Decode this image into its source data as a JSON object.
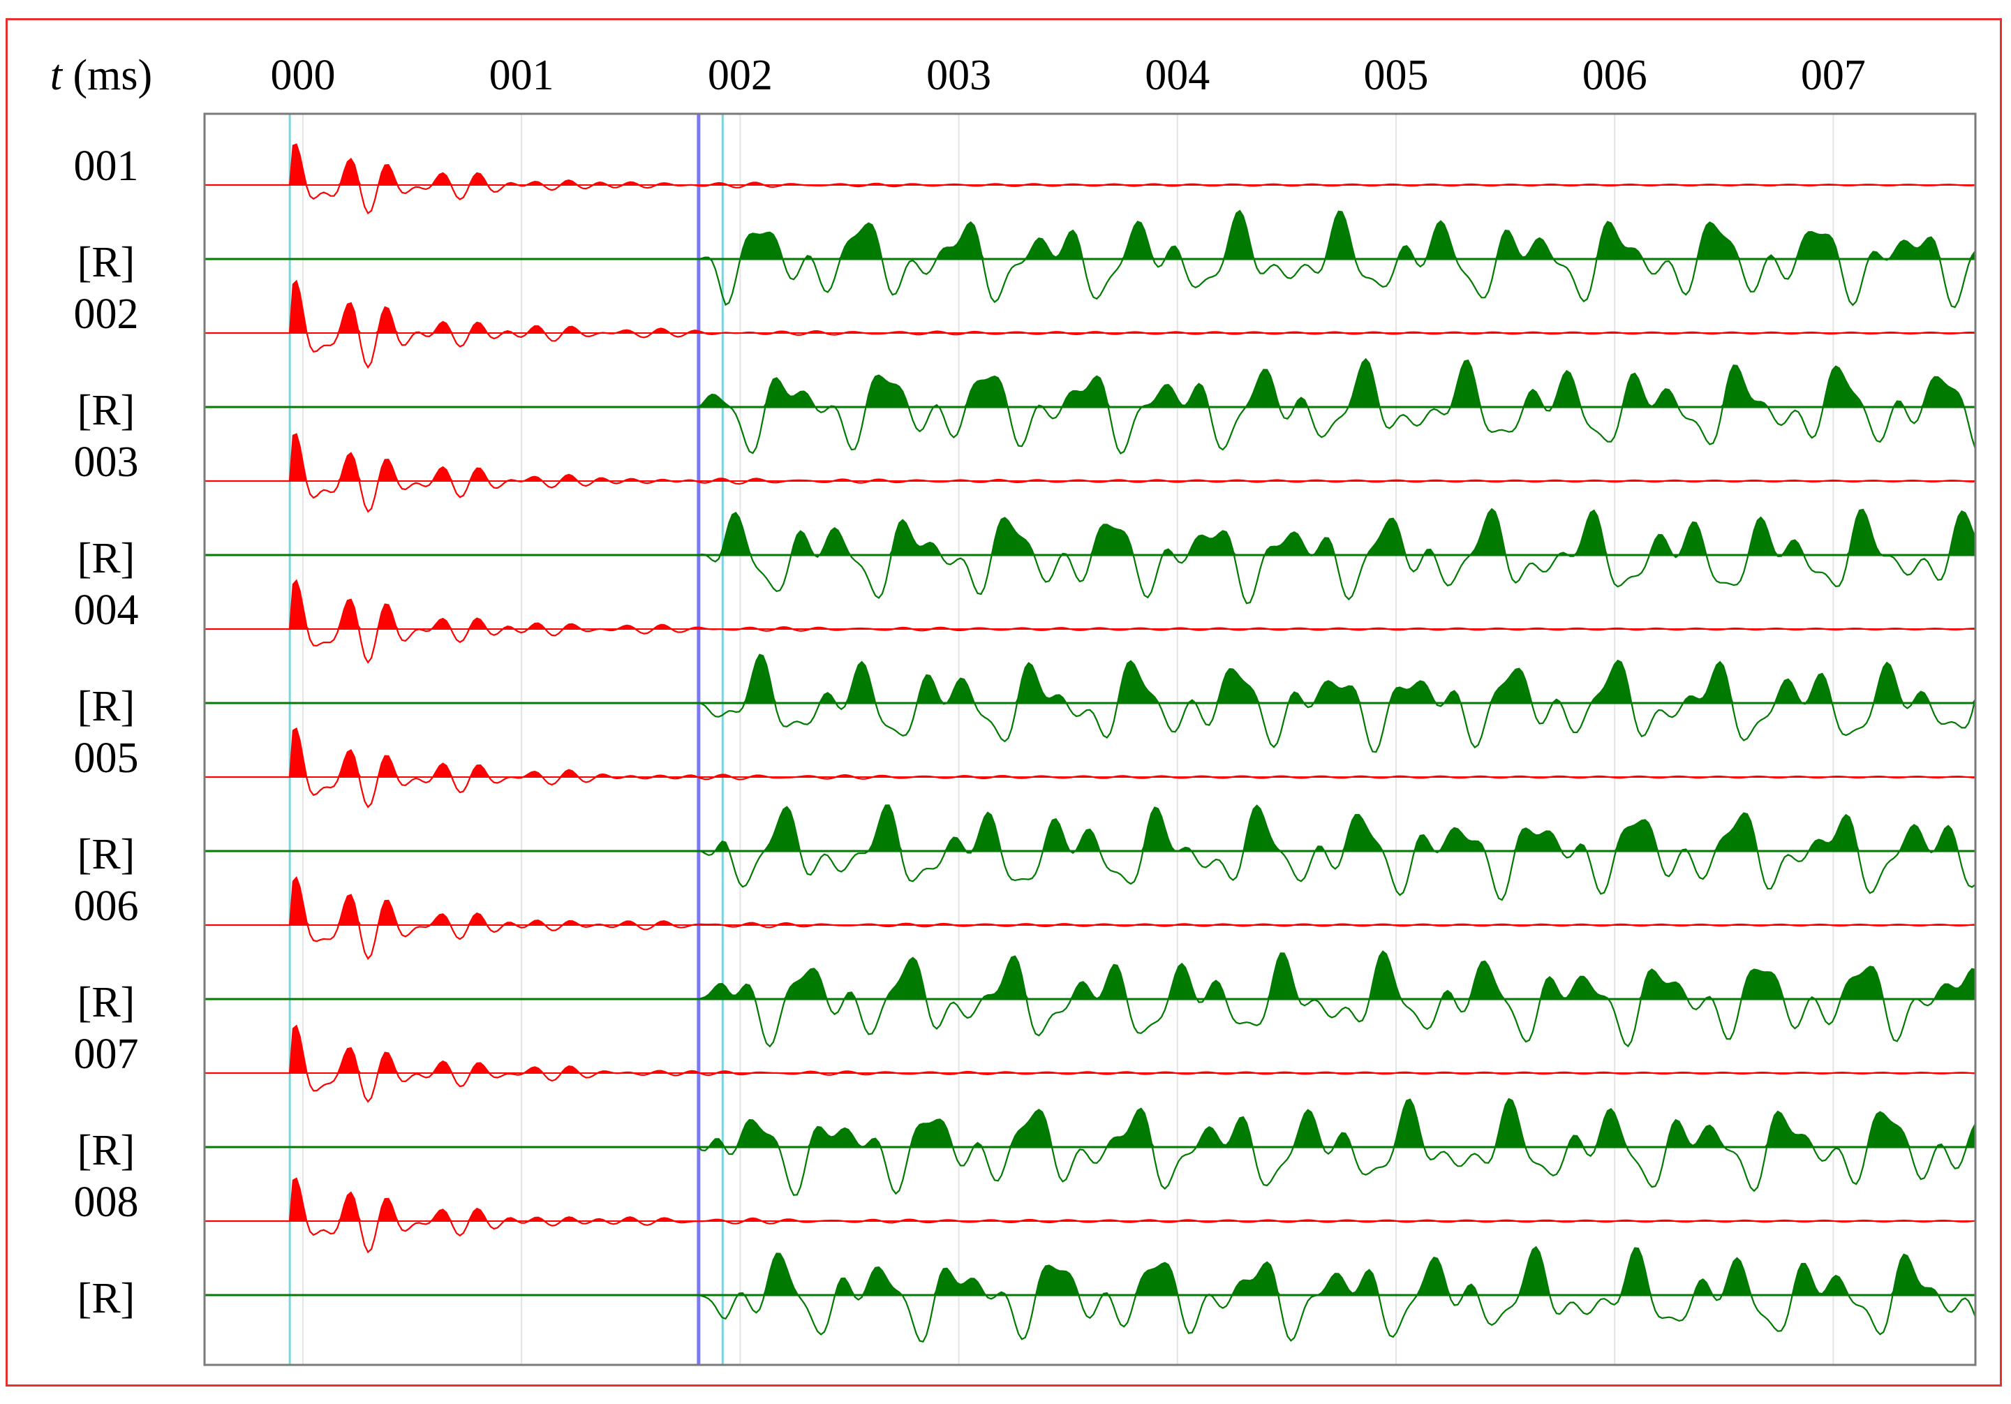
{
  "colors": {
    "frame": "#e8302f",
    "record": "#ff0000",
    "response": "#007a00",
    "marker_primary": "#7a7aee",
    "marker_secondary": "#7fd4dc",
    "grid": "#e4e4e4",
    "plot_border": "#7a7a7a"
  },
  "chart_data": {
    "type": "line",
    "title": "",
    "xlabel": {
      "italic": "t",
      "rest": " (ms)"
    },
    "ylabel": "",
    "x_ticks": [
      "000",
      "001",
      "002",
      "003",
      "004",
      "005",
      "006",
      "007"
    ],
    "xlim": [
      -0.45,
      7.65
    ],
    "grid": true,
    "markers": {
      "onset_record": -0.06,
      "pick_primary": 1.81,
      "onset_response": 1.92
    },
    "series": [
      {
        "label": "001",
        "kind": "record",
        "peak_amplitude": 0.8,
        "first_peak_ms": 0.05
      },
      {
        "label": "[R]",
        "kind": "response",
        "peak_amplitude": 1.0,
        "first_peak_ms": 2.05
      },
      {
        "label": "002",
        "kind": "record",
        "peak_amplitude": 0.95,
        "first_peak_ms": 0.05
      },
      {
        "label": "[R]",
        "kind": "response",
        "peak_amplitude": 1.0,
        "first_peak_ms": 2.05
      },
      {
        "label": "003",
        "kind": "record",
        "peak_amplitude": 0.9,
        "first_peak_ms": 0.05
      },
      {
        "label": "[R]",
        "kind": "response",
        "peak_amplitude": 1.0,
        "first_peak_ms": 2.05
      },
      {
        "label": "004",
        "kind": "record",
        "peak_amplitude": 0.9,
        "first_peak_ms": 0.05
      },
      {
        "label": "[R]",
        "kind": "response",
        "peak_amplitude": 1.0,
        "first_peak_ms": 2.05
      },
      {
        "label": "005",
        "kind": "record",
        "peak_amplitude": 0.9,
        "first_peak_ms": 0.05
      },
      {
        "label": "[R]",
        "kind": "response",
        "peak_amplitude": 1.0,
        "first_peak_ms": 2.05
      },
      {
        "label": "006",
        "kind": "record",
        "peak_amplitude": 0.9,
        "first_peak_ms": 0.05
      },
      {
        "label": "[R]",
        "kind": "response",
        "peak_amplitude": 1.0,
        "first_peak_ms": 2.05
      },
      {
        "label": "007",
        "kind": "record",
        "peak_amplitude": 0.85,
        "first_peak_ms": 0.05
      },
      {
        "label": "[R]",
        "kind": "response",
        "peak_amplitude": 1.0,
        "first_peak_ms": 2.05
      },
      {
        "label": "008",
        "kind": "record",
        "peak_amplitude": 0.95,
        "first_peak_ms": 0.05
      },
      {
        "label": "[R]",
        "kind": "response",
        "peak_amplitude": 1.0,
        "first_peak_ms": 2.05
      }
    ]
  }
}
